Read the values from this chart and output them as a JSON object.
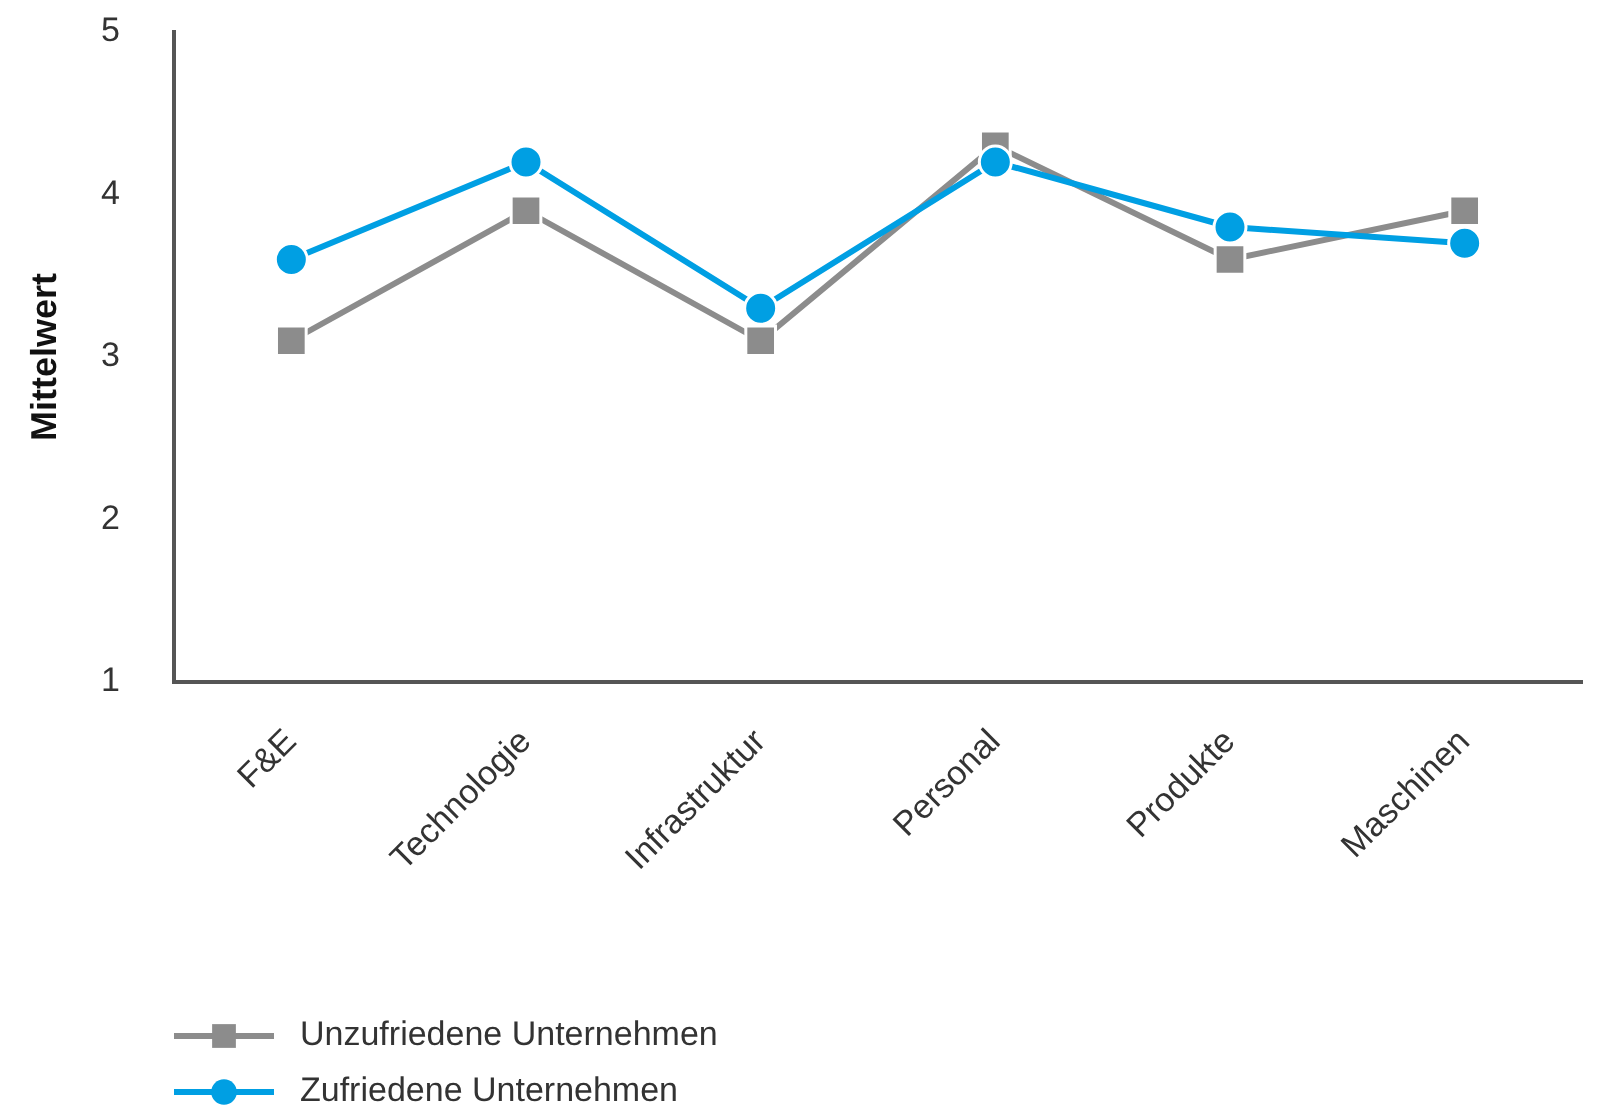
{
  "chart_data": {
    "type": "line",
    "categories": [
      "F&E",
      "Technologie",
      "Infrastruktur",
      "Personal",
      "Produkte",
      "Maschinen"
    ],
    "ylabel": "Mittelwert",
    "ylim": [
      1,
      5
    ],
    "yticks": [
      1,
      2,
      3,
      4,
      5
    ],
    "grid": false,
    "legend": "bottom left",
    "line_style": "solid",
    "series": [
      {
        "name": "Unzufriedene Unternehmen",
        "color": "#8c8c8c",
        "marker": "square",
        "values": [
          3.1,
          3.9,
          3.1,
          4.3,
          3.6,
          3.9
        ]
      },
      {
        "name": "Zufriedene Unternehmen",
        "color": "#009fe3",
        "marker": "circle",
        "values": [
          3.6,
          4.2,
          3.3,
          4.2,
          3.8,
          3.7
        ]
      }
    ]
  }
}
